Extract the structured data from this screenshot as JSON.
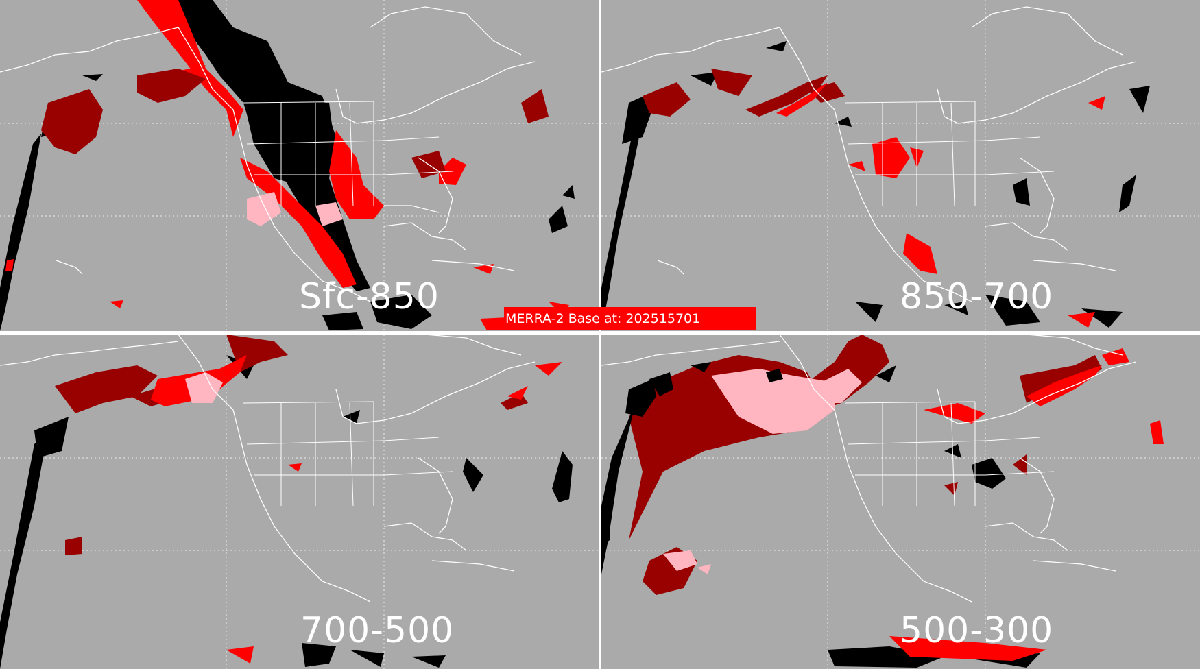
{
  "figure": {
    "banner_text": "MERRA-2 Base at: 202515701",
    "colors": {
      "ocean_background": "#aaaaaa",
      "coastline": "#ffffff",
      "black_class": "#000000",
      "red_class": "#ff0000",
      "darkred_class": "#990000",
      "pink_class": "#ffb6c1",
      "banner_bg": "#ff0000"
    },
    "panels": [
      {
        "id": "p1",
        "label": "Sfc-850"
      },
      {
        "id": "p2",
        "label": "850-700"
      },
      {
        "id": "p3",
        "label": "700-500"
      },
      {
        "id": "p4",
        "label": "500-300"
      }
    ]
  }
}
